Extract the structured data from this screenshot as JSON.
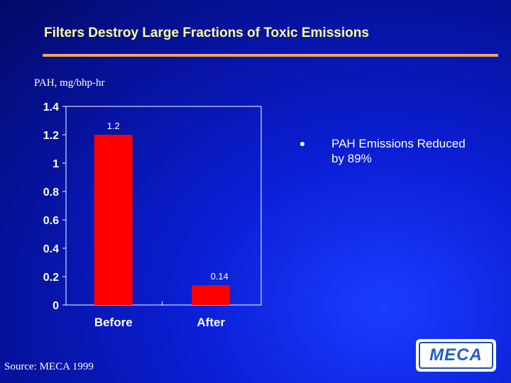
{
  "title": "Filters Destroy Large Fractions of  Toxic Emissions",
  "unit_label": "PAH, mg/bhp-hr",
  "bullet": "PAH Emissions Reduced by 89%",
  "source": "Source: MECA 1999",
  "logo_text": "MECA",
  "colors": {
    "bar": "#ff0000",
    "title": "#ffff99",
    "rule": "#f4a460",
    "background": "#0b1fd6"
  },
  "chart_data": {
    "type": "bar",
    "categories": [
      "Before",
      "After"
    ],
    "values": [
      1.2,
      0.14
    ],
    "data_labels": [
      "1.2",
      "0.14"
    ],
    "ylim": [
      0,
      1.4
    ],
    "yticks": [
      "0",
      "0.2",
      "0.4",
      "0.6",
      "0.8",
      "1",
      "1.2",
      "1.4"
    ],
    "ylabel": "PAH, mg/bhp-hr",
    "grid": false,
    "legend": "none"
  }
}
